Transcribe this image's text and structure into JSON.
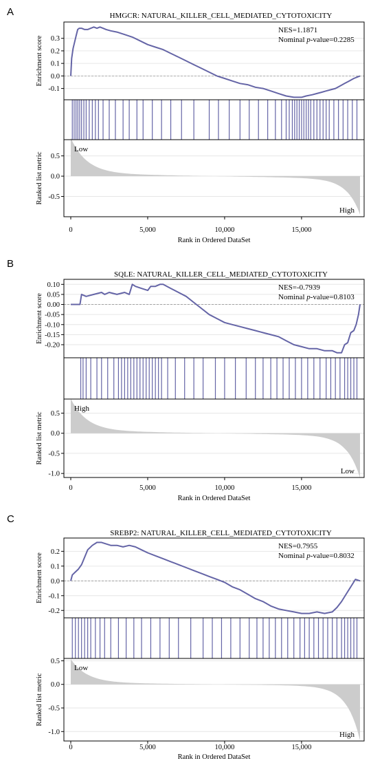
{
  "chart_data": [
    {
      "type": "line",
      "panel_label": "A",
      "title": "HMGCR: NATURAL_KILLER_CELL_MEDIATED_CYTOTOXICITY",
      "xlabel": "Rank in Ordered DataSet",
      "ylabel_es": "Enrichment score",
      "ylabel_metric": "Ranked list metric",
      "nes_text": "NES=1.1871",
      "pvalue_prefix": "Nominal ",
      "pvalue_italic": "p",
      "pvalue_suffix": "-value=0.2285",
      "xlim": [
        0,
        18800
      ],
      "x_ticks": [
        0,
        5000,
        10000,
        15000
      ],
      "x_tick_labels": [
        "0",
        "5,000",
        "10,000",
        "15,000"
      ],
      "es": {
        "ylim": [
          -0.19,
          0.43
        ],
        "ticks": [
          -0.1,
          0.0,
          0.1,
          0.2,
          0.3
        ],
        "tick_labels": [
          "-0.1",
          "0.0",
          "0.1",
          "0.2",
          "0.3"
        ],
        "x": [
          0,
          60,
          150,
          250,
          350,
          450,
          550,
          700,
          900,
          1100,
          1300,
          1500,
          1700,
          1900,
          2100,
          2300,
          2600,
          3000,
          3500,
          4000,
          4500,
          5000,
          5500,
          6000,
          6500,
          7000,
          7500,
          8000,
          8500,
          9000,
          9500,
          10000,
          10500,
          11000,
          11500,
          12000,
          12500,
          13000,
          13500,
          14000,
          14500,
          15000,
          15300,
          15700,
          16000,
          16300,
          16600,
          16900,
          17200,
          17500,
          17800,
          18100,
          18400,
          18600,
          18800
        ],
        "y": [
          0.0,
          0.14,
          0.22,
          0.27,
          0.32,
          0.37,
          0.38,
          0.38,
          0.37,
          0.37,
          0.38,
          0.39,
          0.38,
          0.39,
          0.38,
          0.37,
          0.36,
          0.35,
          0.33,
          0.31,
          0.28,
          0.25,
          0.23,
          0.21,
          0.18,
          0.15,
          0.12,
          0.09,
          0.06,
          0.03,
          0.0,
          -0.02,
          -0.04,
          -0.06,
          -0.07,
          -0.09,
          -0.1,
          -0.12,
          -0.14,
          -0.16,
          -0.17,
          -0.17,
          -0.16,
          -0.15,
          -0.14,
          -0.13,
          -0.12,
          -0.11,
          -0.1,
          -0.08,
          -0.06,
          -0.04,
          -0.02,
          -0.01,
          0.0
        ]
      },
      "hits": [
        100,
        220,
        340,
        460,
        580,
        700,
        850,
        1000,
        1200,
        1400,
        1600,
        1800,
        2100,
        2500,
        2900,
        3400,
        3800,
        4300,
        4700,
        5300,
        5900,
        6500,
        7200,
        8000,
        9000,
        9600,
        10300,
        11000,
        11600,
        12200,
        12800,
        13300,
        13700,
        14000,
        14200,
        14400,
        14550,
        14700,
        14850,
        15000,
        15150,
        15300,
        15450,
        15600,
        15800,
        16000,
        16200,
        16400,
        16600,
        16800,
        17100,
        17400,
        17700,
        18000,
        18300,
        18600
      ],
      "metric": {
        "ylim": [
          -1.0,
          0.9
        ],
        "ticks": [
          -0.5,
          0.0,
          0.5
        ],
        "tick_labels": [
          "-0.5",
          "0.0",
          "0.5"
        ],
        "max": 0.88,
        "min": -0.88,
        "left_label": "Low",
        "right_label": "High"
      }
    },
    {
      "type": "line",
      "panel_label": "B",
      "title": "SQLE: NATURAL_KILLER_CELL_MEDIATED_CYTOTOXICITY",
      "xlabel": "Rank in Ordered DataSet",
      "ylabel_es": "Enrichment score",
      "ylabel_metric": "Ranked list metric",
      "nes_text": "NES=-0.7939",
      "pvalue_prefix": "Nominal ",
      "pvalue_italic": "p",
      "pvalue_suffix": "-value=0.8103",
      "xlim": [
        0,
        18800
      ],
      "x_ticks": [
        0,
        5000,
        10000,
        15000
      ],
      "x_tick_labels": [
        "0",
        "5,000",
        "10,000",
        "15,000"
      ],
      "es": {
        "ylim": [
          -0.265,
          0.125
        ],
        "ticks": [
          -0.2,
          -0.15,
          -0.1,
          -0.05,
          0.0,
          0.05,
          0.1
        ],
        "tick_labels": [
          "-0.20",
          "-0.15",
          "-0.10",
          "-0.05",
          "0.00",
          "0.05",
          "0.10"
        ],
        "x": [
          0,
          300,
          600,
          700,
          1000,
          1500,
          2000,
          2200,
          2500,
          3000,
          3500,
          3800,
          4000,
          4200,
          4600,
          5000,
          5200,
          5500,
          5800,
          6000,
          6500,
          7000,
          7500,
          8000,
          8500,
          9000,
          9500,
          10000,
          10500,
          11000,
          11500,
          12000,
          12500,
          13000,
          13500,
          14000,
          14500,
          15000,
          15500,
          16000,
          16500,
          17000,
          17300,
          17600,
          17800,
          18000,
          18200,
          18400,
          18550,
          18700,
          18800
        ],
        "y": [
          0.0,
          0.0,
          0.0,
          0.05,
          0.04,
          0.05,
          0.06,
          0.05,
          0.06,
          0.05,
          0.06,
          0.05,
          0.1,
          0.09,
          0.08,
          0.07,
          0.09,
          0.09,
          0.1,
          0.1,
          0.08,
          0.06,
          0.04,
          0.01,
          -0.02,
          -0.05,
          -0.07,
          -0.09,
          -0.1,
          -0.11,
          -0.12,
          -0.13,
          -0.14,
          -0.15,
          -0.16,
          -0.18,
          -0.2,
          -0.21,
          -0.22,
          -0.22,
          -0.23,
          -0.23,
          -0.24,
          -0.24,
          -0.2,
          -0.19,
          -0.14,
          -0.13,
          -0.1,
          -0.05,
          0.0
        ]
      },
      "hits": [
        650,
        800,
        1000,
        1300,
        1700,
        2000,
        2400,
        2800,
        3100,
        3300,
        3500,
        3700,
        3900,
        4100,
        4300,
        4500,
        4700,
        4900,
        5100,
        5300,
        5500,
        5700,
        5900,
        6300,
        6800,
        7400,
        8000,
        8600,
        9400,
        10000,
        10700,
        11400,
        12000,
        12500,
        13000,
        13400,
        13800,
        14200,
        14600,
        15000,
        15400,
        15800,
        16200,
        16600,
        16900,
        17200,
        17500,
        17800,
        18000,
        18200,
        18400,
        18600
      ],
      "metric": {
        "ylim": [
          -1.1,
          0.85
        ],
        "ticks": [
          -1.0,
          -0.5,
          0.0,
          0.5
        ],
        "tick_labels": [
          "-1.0",
          "-0.5",
          "0.0",
          "0.5"
        ],
        "max": 0.8,
        "min": -1.05,
        "left_label": "High",
        "right_label": "Low"
      }
    },
    {
      "type": "line",
      "panel_label": "C",
      "title": "SREBP2: NATURAL_KILLER_CELL_MEDIATED_CYTOTOXICITY",
      "xlabel": "Rank in Ordered DataSet",
      "ylabel_es": "Enrichment score",
      "ylabel_metric": "Ranked list metric",
      "nes_text": "NES=0.7955",
      "pvalue_prefix": "Nominal ",
      "pvalue_italic": "p",
      "pvalue_suffix": "-value=0.8032",
      "xlim": [
        0,
        18800
      ],
      "x_ticks": [
        0,
        5000,
        10000,
        15000
      ],
      "x_tick_labels": [
        "0",
        "5,000",
        "10,000",
        "15,000"
      ],
      "es": {
        "ylim": [
          -0.25,
          0.29
        ],
        "ticks": [
          -0.2,
          -0.1,
          0.0,
          0.1,
          0.2
        ],
        "tick_labels": [
          "-0.2",
          "-0.1",
          "0.0",
          "0.1",
          "0.2"
        ],
        "x": [
          0,
          100,
          300,
          500,
          700,
          900,
          1100,
          1400,
          1700,
          2000,
          2300,
          2600,
          3000,
          3400,
          3800,
          4200,
          4600,
          5000,
          5500,
          6000,
          6500,
          7000,
          7500,
          8000,
          8500,
          9000,
          9500,
          10000,
          10500,
          11000,
          11500,
          12000,
          12500,
          13000,
          13500,
          14000,
          14500,
          15000,
          15500,
          16000,
          16500,
          17000,
          17300,
          17600,
          17900,
          18200,
          18500,
          18800
        ],
        "y": [
          0.0,
          0.04,
          0.06,
          0.08,
          0.11,
          0.16,
          0.21,
          0.24,
          0.26,
          0.26,
          0.25,
          0.24,
          0.24,
          0.23,
          0.24,
          0.23,
          0.21,
          0.19,
          0.17,
          0.15,
          0.13,
          0.11,
          0.09,
          0.07,
          0.05,
          0.03,
          0.01,
          -0.01,
          -0.04,
          -0.06,
          -0.09,
          -0.12,
          -0.14,
          -0.17,
          -0.19,
          -0.2,
          -0.21,
          -0.22,
          -0.22,
          -0.21,
          -0.22,
          -0.21,
          -0.18,
          -0.14,
          -0.09,
          -0.04,
          0.01,
          0.0
        ]
      },
      "hits": [
        100,
        300,
        500,
        700,
        900,
        1100,
        1300,
        1600,
        1900,
        2200,
        2600,
        3100,
        3600,
        4100,
        4600,
        5200,
        5800,
        6400,
        7000,
        7800,
        8600,
        9200,
        9800,
        10400,
        11000,
        11600,
        12100,
        12500,
        12900,
        13300,
        13700,
        14100,
        14500,
        14900,
        15200,
        15500,
        15800,
        16100,
        16400,
        16700,
        17000,
        17300,
        17600,
        17800,
        18000,
        18200,
        18400,
        18600
      ],
      "metric": {
        "ylim": [
          -1.2,
          0.55
        ],
        "ticks": [
          -1.0,
          -0.5,
          0.0,
          0.5
        ],
        "tick_labels": [
          "-1.0",
          "-0.5",
          "0.0",
          "0.5"
        ],
        "max": 0.5,
        "min": -1.15,
        "left_label": "Low",
        "right_label": "High"
      }
    }
  ]
}
